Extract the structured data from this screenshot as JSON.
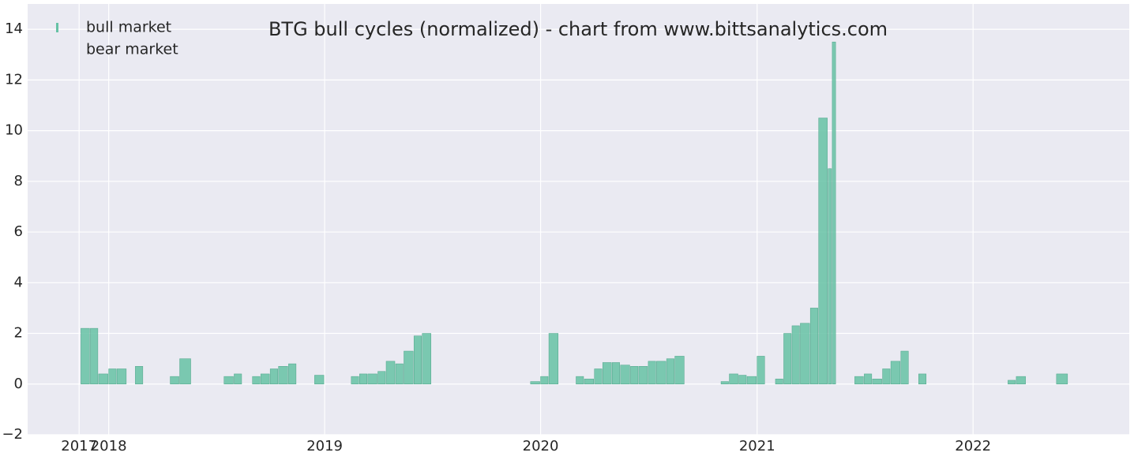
{
  "chart_data": {
    "type": "bar",
    "title": "BTG bull cycles (normalized)  - chart from www.bittsanalytics.com",
    "x": [
      "2017-11-15",
      "2017-12-01",
      "2017-12-15",
      "2018-01-01",
      "2018-01-15",
      "2018-02-01",
      "2018-02-15",
      "2018-03-01",
      "2018-04-01",
      "2018-04-15",
      "2018-05-01",
      "2018-06-01",
      "2018-07-15",
      "2018-08-01",
      "2018-08-15",
      "2018-09-01",
      "2018-09-15",
      "2018-10-01",
      "2018-10-15",
      "2018-11-01",
      "2018-11-15",
      "2018-12-15",
      "2019-01-01",
      "2019-02-15",
      "2019-03-01",
      "2019-03-15",
      "2019-04-01",
      "2019-04-15",
      "2019-05-01",
      "2019-05-15",
      "2019-06-01",
      "2019-06-15",
      "2019-07-01",
      "2019-12-15",
      "2020-01-01",
      "2020-01-15",
      "2020-02-01",
      "2020-03-01",
      "2020-03-15",
      "2020-04-01",
      "2020-04-15",
      "2020-05-01",
      "2020-05-15",
      "2020-06-01",
      "2020-06-15",
      "2020-07-01",
      "2020-07-15",
      "2020-08-01",
      "2020-08-15",
      "2020-09-01",
      "2020-11-01",
      "2020-11-15",
      "2020-12-01",
      "2020-12-15",
      "2021-01-01",
      "2021-01-15",
      "2021-02-01",
      "2021-02-15",
      "2021-03-01",
      "2021-03-15",
      "2021-04-01",
      "2021-04-15",
      "2021-05-01",
      "2021-05-08",
      "2021-05-15",
      "2021-06-15",
      "2021-07-01",
      "2021-07-15",
      "2021-08-01",
      "2021-08-15",
      "2021-09-01",
      "2021-09-15",
      "2021-10-01",
      "2021-10-15",
      "2022-03-01",
      "2022-03-15",
      "2022-04-01",
      "2022-05-22",
      "2022-06-15"
    ],
    "series": [
      {
        "name": "bull market",
        "color": "#66c2a5",
        "values": [
          2.2,
          2.2,
          0.4,
          0.6,
          0.6,
          null,
          0.7,
          null,
          null,
          0.3,
          1.0,
          null,
          0.3,
          0.4,
          null,
          0.3,
          0.4,
          0.6,
          0.7,
          0.8,
          null,
          0.35,
          null,
          0.3,
          0.4,
          0.4,
          0.5,
          0.9,
          0.8,
          1.3,
          1.9,
          2.0,
          null,
          0.1,
          0.3,
          2.0,
          null,
          0.3,
          0.2,
          0.6,
          0.85,
          0.85,
          0.75,
          0.7,
          0.7,
          0.9,
          0.9,
          1.0,
          1.1,
          null,
          0.1,
          0.4,
          0.35,
          0.3,
          1.1,
          null,
          0.2,
          2.0,
          2.3,
          2.4,
          3.0,
          10.5,
          8.5,
          13.5,
          null,
          0.3,
          0.4,
          0.2,
          0.6,
          0.9,
          1.3,
          null,
          0.4,
          null,
          0.15,
          0.3,
          null,
          0.4,
          null
        ]
      },
      {
        "name": "bear market",
        "color": "none",
        "values": [
          null,
          null,
          null,
          null,
          null,
          0,
          null,
          0,
          0,
          null,
          null,
          0,
          null,
          null,
          0,
          null,
          null,
          null,
          null,
          null,
          0,
          null,
          0,
          null,
          null,
          null,
          null,
          null,
          null,
          null,
          null,
          null,
          0,
          null,
          null,
          null,
          0,
          null,
          null,
          null,
          null,
          null,
          null,
          null,
          null,
          null,
          null,
          null,
          null,
          0,
          null,
          null,
          null,
          null,
          null,
          0,
          null,
          null,
          null,
          null,
          null,
          null,
          null,
          null,
          0,
          null,
          null,
          null,
          null,
          null,
          null,
          0,
          null,
          0,
          null,
          null,
          0,
          null,
          0
        ]
      }
    ],
    "xlim": [
      "2017-08-17",
      "2022-09-22"
    ],
    "xticks": [
      {
        "value": "2017-11-12",
        "label": "2017"
      },
      {
        "value": "2018-01-01",
        "label": "2018"
      },
      {
        "value": "2019-01-01",
        "label": "2019"
      },
      {
        "value": "2020-01-01",
        "label": "2020"
      },
      {
        "value": "2021-01-01",
        "label": "2021"
      },
      {
        "value": "2022-01-01",
        "label": "2022"
      }
    ],
    "ylim": [
      -2,
      15
    ],
    "yticks": [
      {
        "value": -2,
        "label": "−2"
      },
      0,
      2,
      4,
      6,
      8,
      10,
      12,
      14
    ],
    "grid": true,
    "legend": "upper left"
  }
}
